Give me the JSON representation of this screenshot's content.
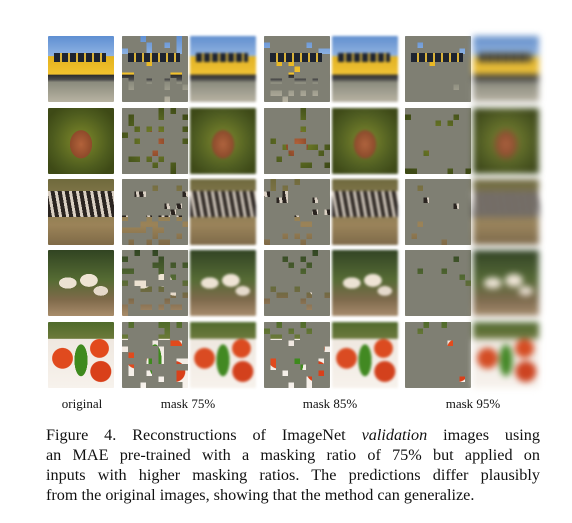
{
  "column_labels": [
    "original",
    "mask 75%",
    "mask 85%",
    "mask 95%"
  ],
  "row_subjects": [
    "school-bus",
    "amphora-vase",
    "zebras",
    "mushrooms",
    "vegetables"
  ],
  "caption": {
    "lines": [
      {
        "pre": "Figure 4.  Reconstructions of ImageNet ",
        "em": "validation",
        "post": " images using"
      },
      {
        "pre": "an MAE pre-trained with a masking ratio of 75% but applied on",
        "em": "",
        "post": ""
      },
      {
        "pre": "inputs with higher masking ratios. The predictions differ plausibly",
        "em": "",
        "post": ""
      },
      {
        "pre": "from the original images, showing that the method can generalize.",
        "em": "",
        "post": ""
      }
    ]
  },
  "colors": {
    "mask_gray": "#7f7f73",
    "page_bg": "#ffffff"
  },
  "mask_ratios": [
    0.75,
    0.85,
    0.95
  ]
}
